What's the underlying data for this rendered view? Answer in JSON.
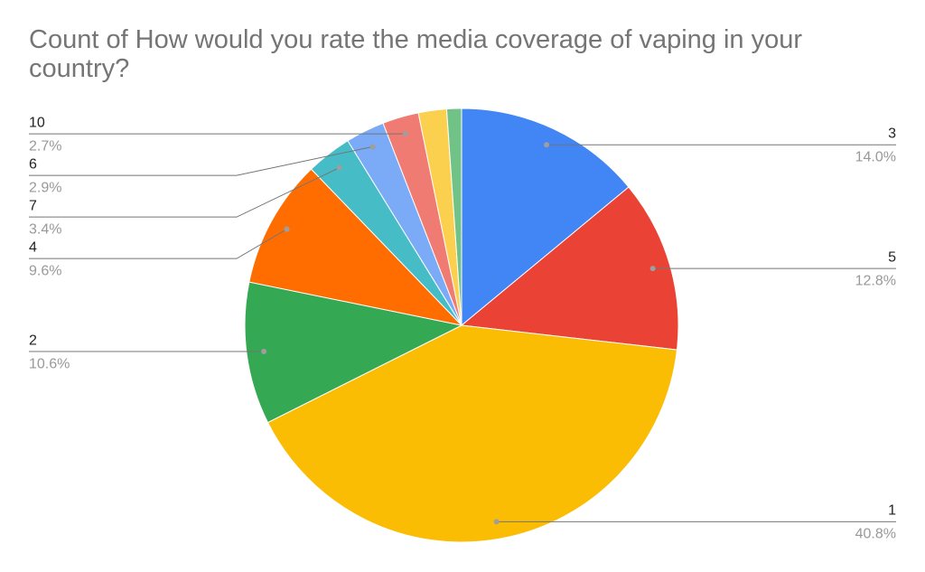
{
  "chart_data": {
    "type": "pie",
    "title": "Count of How would you rate the media coverage of vaping in your country?",
    "categories": [
      "3",
      "5",
      "1",
      "2",
      "4",
      "7",
      "6",
      "10",
      null,
      null
    ],
    "values": [
      14.0,
      12.8,
      40.8,
      10.6,
      9.6,
      3.4,
      2.9,
      2.7,
      2.1,
      1.1
    ],
    "value_labels": [
      "14.0%",
      "12.8%",
      "40.8%",
      "10.6%",
      "9.6%",
      "3.4%",
      "2.9%",
      "2.7%",
      null,
      null
    ],
    "colors": [
      "#4285f4",
      "#ea4335",
      "#fbbc04",
      "#34a853",
      "#ff6d01",
      "#46bdc6",
      "#7baaf7",
      "#f07b72",
      "#fcd04f",
      "#71c287"
    ]
  }
}
